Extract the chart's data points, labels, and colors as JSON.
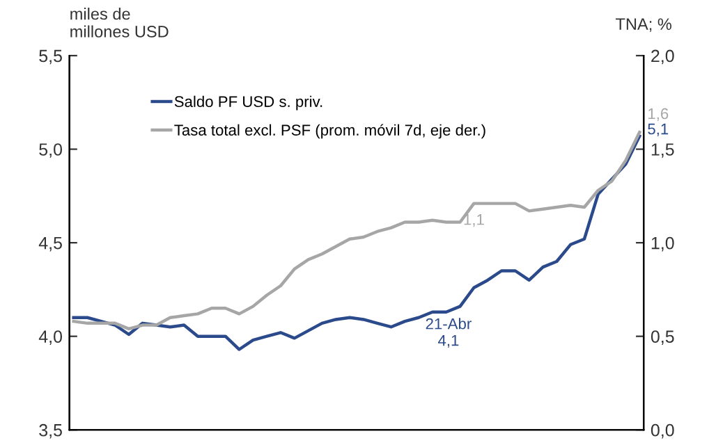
{
  "chart_data": {
    "type": "line",
    "ylabel": "miles de\nmillones USD",
    "y2label": "TNA; %",
    "categories": [
      null,
      null,
      null,
      null,
      null,
      null,
      null,
      null,
      null,
      null,
      null,
      null,
      null,
      null,
      null,
      null,
      null,
      null,
      null,
      null,
      null,
      null,
      null,
      null,
      null,
      null,
      null,
      null,
      null,
      null,
      null,
      null,
      null,
      null,
      null,
      null,
      null,
      null,
      null,
      null,
      null,
      null
    ],
    "ylim": [
      3.5,
      5.5
    ],
    "yticks": [
      {
        "value": 3.5,
        "label": "3,5"
      },
      {
        "value": 4.0,
        "label": "4,0"
      },
      {
        "value": 4.5,
        "label": "4,5"
      },
      {
        "value": 5.0,
        "label": "5,0"
      },
      {
        "value": 5.5,
        "label": "5,5"
      }
    ],
    "y2lim": [
      0,
      2
    ],
    "y2ticks": [
      {
        "value": 0,
        "label": "0,0"
      },
      {
        "value": 0.5,
        "label": "0,5"
      },
      {
        "value": 1.0,
        "label": "1,0"
      },
      {
        "value": 1.5,
        "label": "1,5"
      },
      {
        "value": 2.0,
        "label": "2,0"
      }
    ],
    "legend": "top left",
    "grid": false,
    "marker": "none",
    "line_style": "solid",
    "series": [
      {
        "name": "Saldo PF USD s. priv.",
        "color": "#2b4a8b",
        "values": [
          4.1,
          4.1,
          4.08,
          4.06,
          4.01,
          4.07,
          4.06,
          4.05,
          4.06,
          4.0,
          4.0,
          4.0,
          3.93,
          3.98,
          4.0,
          4.02,
          3.99,
          4.03,
          4.07,
          4.09,
          4.1,
          4.09,
          4.07,
          4.05,
          4.08,
          4.1,
          4.13,
          4.13,
          4.16,
          4.26,
          4.3,
          4.35,
          4.35,
          4.3,
          4.37,
          4.4,
          4.49,
          4.52,
          4.76,
          4.84,
          4.92,
          5.07
        ]
      },
      {
        "name": "Tasa total excl. PSF (prom. móvil 7d, eje der.)",
        "color": "#a6a6a6",
        "axis": "y2",
        "values": [
          0.58,
          0.57,
          0.57,
          0.57,
          0.54,
          0.56,
          0.56,
          0.6,
          0.61,
          0.62,
          0.65,
          0.65,
          0.62,
          0.66,
          0.72,
          0.77,
          0.86,
          0.91,
          0.94,
          0.98,
          1.02,
          1.03,
          1.06,
          1.08,
          1.11,
          1.11,
          1.12,
          1.11,
          1.11,
          1.21,
          1.21,
          1.21,
          1.21,
          1.17,
          1.18,
          1.19,
          1.2,
          1.19,
          1.28,
          1.33,
          1.44,
          1.59
        ]
      }
    ],
    "annotations": [
      "21-Abr\n4,1",
      "5,1",
      "1,1",
      "1,6"
    ]
  }
}
